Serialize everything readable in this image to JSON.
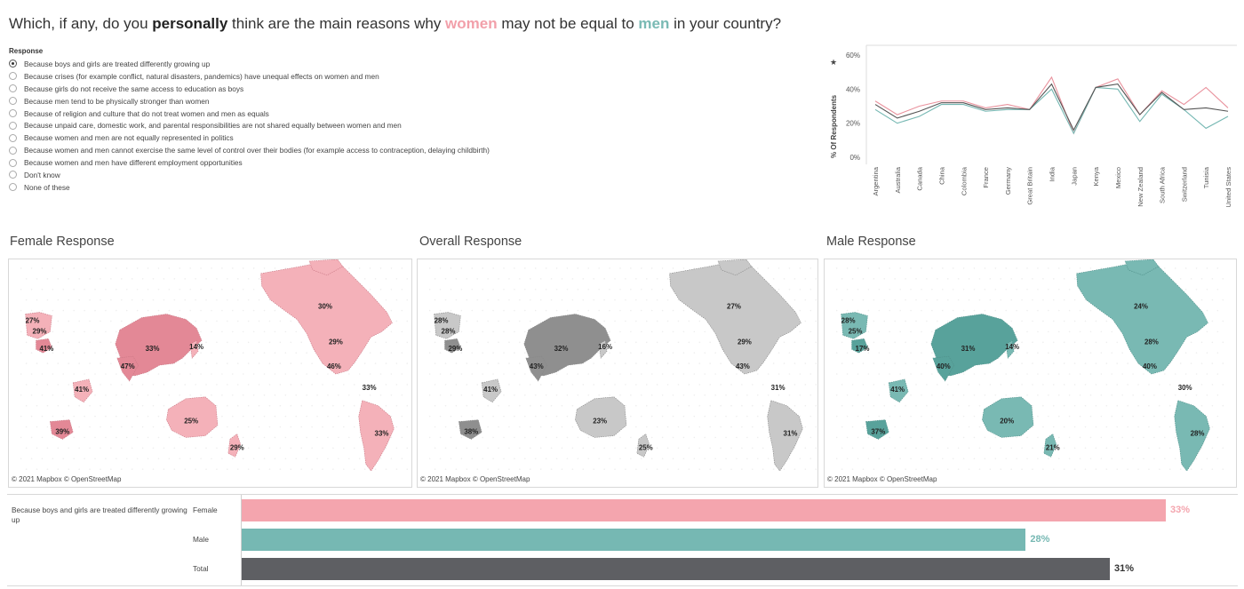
{
  "title": {
    "part1": "Which, if any, do you ",
    "bold1": "personally",
    "part2": " think are the main reasons why ",
    "women": "women",
    "part3": " may not be equal to ",
    "men": "men",
    "part4": " in your country?"
  },
  "response_filter": {
    "heading": "Response",
    "selected_index": 0,
    "options": [
      "Because boys and girls are treated differently growing up",
      "Because crises (for example conflict, natural disasters, pandemics) have unequal effects on women and men",
      "Because girls do not receive the same access to education as boys",
      "Because men tend to be physically stronger than women",
      "Because of religion and culture that do not treat women and men as equals",
      "Because unpaid care, domestic work, and parental responsibilities are not shared equally between women and men",
      "Because women and men are not equally represented in politics",
      "Because women and men cannot exercise the same level of control over their bodies (for example access to contraception, delaying childbirth)",
      "Because women and men have different employment opportunities",
      "Don't know",
      "None of these"
    ]
  },
  "colors": {
    "female": "#f4a5ae",
    "male": "#76b8b3",
    "total": "#5e5f63",
    "overall_map": "#bdbdbd"
  },
  "chart_data": {
    "type": "line",
    "ylabel": "% Of Respondents",
    "y_ticks": [
      "60%",
      "40%",
      "20%",
      "0%"
    ],
    "ylim": [
      0,
      60
    ],
    "x": [
      "Argentina",
      "Australia",
      "Canada",
      "China",
      "Colombia",
      "France",
      "Germany",
      "Great Britain",
      "India",
      "Japan",
      "Kenya",
      "Mexico",
      "New Zealand",
      "South Africa",
      "Switzerland",
      "Tunisia",
      "United States"
    ],
    "series": [
      {
        "name": "Female",
        "color": "#e9929d",
        "values": [
          33,
          25,
          30,
          33,
          33,
          29,
          31,
          28,
          47,
          14,
          41,
          46,
          25,
          39,
          31,
          41,
          29
        ]
      },
      {
        "name": "Male",
        "color": "#76b8b3",
        "values": [
          28,
          20,
          24,
          31,
          31,
          27,
          28,
          28,
          40,
          14,
          41,
          40,
          21,
          37,
          28,
          17,
          24
        ]
      },
      {
        "name": "Total",
        "color": "#555555",
        "values": [
          31,
          23,
          27,
          32,
          32,
          28,
          29,
          28,
          43,
          16,
          41,
          43,
          25,
          38,
          28,
          29,
          27
        ]
      }
    ]
  },
  "maps": {
    "female": {
      "title": "Female Response",
      "copyright": "© 2021 Mapbox © OpenStreetMap",
      "labels": [
        "27%",
        "29%",
        "41%",
        "33%",
        "14%",
        "47%",
        "30%",
        "29%",
        "46%",
        "41%",
        "33%",
        "39%",
        "25%",
        "29%",
        "33%"
      ]
    },
    "overall": {
      "title": "Overall Response",
      "copyright": "© 2021 Mapbox © OpenStreetMap",
      "labels": [
        "28%",
        "28%",
        "29%",
        "32%",
        "16%",
        "43%",
        "27%",
        "29%",
        "43%",
        "41%",
        "31%",
        "38%",
        "23%",
        "25%",
        "31%"
      ]
    },
    "male": {
      "title": "Male Response",
      "copyright": "© 2021 Mapbox © OpenStreetMap",
      "labels": [
        "28%",
        "25%",
        "17%",
        "31%",
        "14%",
        "40%",
        "24%",
        "28%",
        "40%",
        "41%",
        "30%",
        "37%",
        "20%",
        "21%",
        "28%"
      ]
    }
  },
  "bar_summary": {
    "response_label": "Because boys and girls are treated differently growing up",
    "rows": [
      {
        "label": "Female",
        "value": 33,
        "value_label": "33%"
      },
      {
        "label": "Male",
        "value": 28,
        "value_label": "28%"
      },
      {
        "label": "Total",
        "value": 31,
        "value_label": "31%"
      }
    ]
  }
}
